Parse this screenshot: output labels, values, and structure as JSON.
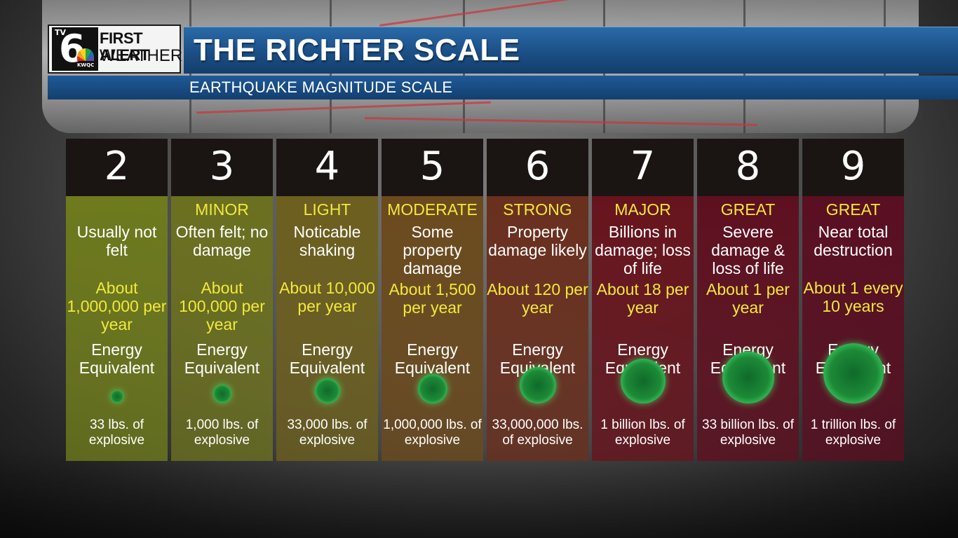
{
  "header": {
    "logo_tv": "TV",
    "logo_six": "6",
    "logo_call": "KWQC",
    "logo_line1": "FIRST ALERT",
    "logo_line2": "WEATHER",
    "title": "THE RICHTER SCALE",
    "subtitle": "EARTHQUAKE MAGNITUDE SCALE"
  },
  "colors": {
    "title_bar": "#1b4f86",
    "label_yellow": "#f2e93b",
    "ball_green": "#3ad064"
  },
  "columns": [
    {
      "magnitude": "2",
      "label": "",
      "desc": "Usually not felt",
      "freq": "About 1,000,000 per year",
      "energy": "Energy Equivalent",
      "amount": "33 lbs. of explosive",
      "color": "#6e7a1d"
    },
    {
      "magnitude": "3",
      "label": "MINOR",
      "desc": "Often felt; no damage",
      "freq": "About 100,000 per year",
      "energy": "Energy Equivalent",
      "amount": "1,000 lbs. of explosive",
      "color": "#6b7020"
    },
    {
      "magnitude": "4",
      "label": "LIGHT",
      "desc": "Noticable shaking",
      "freq": "About 10,000 per year",
      "energy": "Energy Equivalent",
      "amount": "33,000 lbs. of explosive",
      "color": "#6c5f1f"
    },
    {
      "magnitude": "5",
      "label": "MODERATE",
      "desc": "Some property damage",
      "freq": "About 1,500 per year",
      "energy": "Energy Equivalent",
      "amount": "1,000,000 lbs. of explosive",
      "color": "#6b4a1d"
    },
    {
      "magnitude": "6",
      "label": "STRONG",
      "desc": "Property damage likely",
      "freq": "About 120 per year",
      "energy": "Energy Equivalent",
      "amount": "33,000,000 lbs. of explosive",
      "color": "#6a2f1e"
    },
    {
      "magnitude": "7",
      "label": "MAJOR",
      "desc": "Billions in damage; loss of life",
      "freq": "About 18 per year",
      "energy": "Energy Equivalent",
      "amount": "1 billion lbs. of explosive",
      "color": "#67141d"
    },
    {
      "magnitude": "8",
      "label": "GREAT",
      "desc": "Severe damage & loss of life",
      "freq": "About 1 per year",
      "energy": "Energy Equivalent",
      "amount": "33 billion lbs. of explosive",
      "color": "#5e1020"
    },
    {
      "magnitude": "9",
      "label": "GREAT",
      "desc": "Near total destruction",
      "freq": "About 1 every 10 years",
      "energy": "Energy Equivalent",
      "amount": "1 trillion lbs. of explosive",
      "color": "#5a0f22"
    }
  ]
}
